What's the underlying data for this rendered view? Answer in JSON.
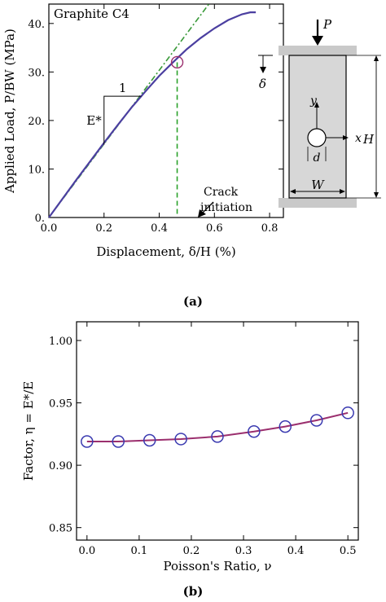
{
  "colors": {
    "curve": "#4b3fa0",
    "fit": "#3a9a3a",
    "crack": "#2aa12a",
    "eta_line": "#9b2f6e",
    "marker": "#3a3ab0",
    "specimen": "#d7d7d7"
  },
  "chart_data": [
    {
      "type": "line",
      "panel": "(a)",
      "annotation": "Graphite C4",
      "xlabel": "Displacement, δ/H (%)",
      "ylabel": "Applied Load, P/BW (MPa)",
      "xlim": [
        0.0,
        0.85
      ],
      "ylim": [
        0,
        44
      ],
      "xticks": [
        "0.0",
        "0.2",
        "0.4",
        "0.6",
        "0.8"
      ],
      "yticks": [
        "0.",
        "10.",
        "20.",
        "30.",
        "40."
      ],
      "xtick_values": [
        0.0,
        0.2,
        0.4,
        0.6,
        0.8
      ],
      "ytick_values": [
        0,
        10,
        20,
        30,
        40
      ],
      "series": [
        {
          "x": [
            0.0,
            0.05,
            0.1,
            0.15,
            0.2,
            0.25,
            0.3,
            0.35,
            0.4,
            0.45,
            0.5,
            0.55,
            0.6,
            0.65,
            0.7,
            0.73,
            0.75
          ],
          "y": [
            0.0,
            3.9,
            7.8,
            11.6,
            15.4,
            19.1,
            22.7,
            26.0,
            29.2,
            32.0,
            34.7,
            37.0,
            39.0,
            40.7,
            41.9,
            42.3,
            42.3
          ]
        }
      ],
      "fit_line": {
        "x": [
          0.0,
          0.58
        ],
        "y": [
          0.0,
          44.0
        ]
      },
      "slope_triangle": {
        "x0": 0.2,
        "x1": 0.335,
        "y0": 15.0,
        "y1": 25.0,
        "run_label": "1",
        "rise_label": "E*"
      },
      "crack_initiation": {
        "x": 0.465,
        "y": 32.0,
        "label_line1": "Crack",
        "label_line2": "initiation"
      }
    },
    {
      "type": "line",
      "panel": "(b)",
      "xlabel": "Poisson's Ratio, ν",
      "ylabel": "Factor, η = E*/E",
      "xlim": [
        -0.02,
        0.52
      ],
      "ylim": [
        0.84,
        1.015
      ],
      "xticks": [
        "0.0",
        "0.1",
        "0.2",
        "0.3",
        "0.4",
        "0.5"
      ],
      "yticks": [
        "0.85",
        "0.90",
        "0.95",
        "1.00"
      ],
      "xtick_values": [
        0.0,
        0.1,
        0.2,
        0.3,
        0.4,
        0.5
      ],
      "ytick_values": [
        0.85,
        0.9,
        0.95,
        1.0
      ],
      "series": [
        {
          "x": [
            0.0,
            0.06,
            0.12,
            0.18,
            0.25,
            0.32,
            0.38,
            0.44,
            0.5
          ],
          "y": [
            0.919,
            0.919,
            0.92,
            0.921,
            0.923,
            0.927,
            0.931,
            0.936,
            0.942
          ]
        }
      ]
    }
  ],
  "schematic": {
    "load_label": "P",
    "disp_label": "δ",
    "y_axis_label": "y",
    "x_axis_label": "x",
    "hole_label": "d",
    "width_label": "W",
    "height_label": "H"
  }
}
